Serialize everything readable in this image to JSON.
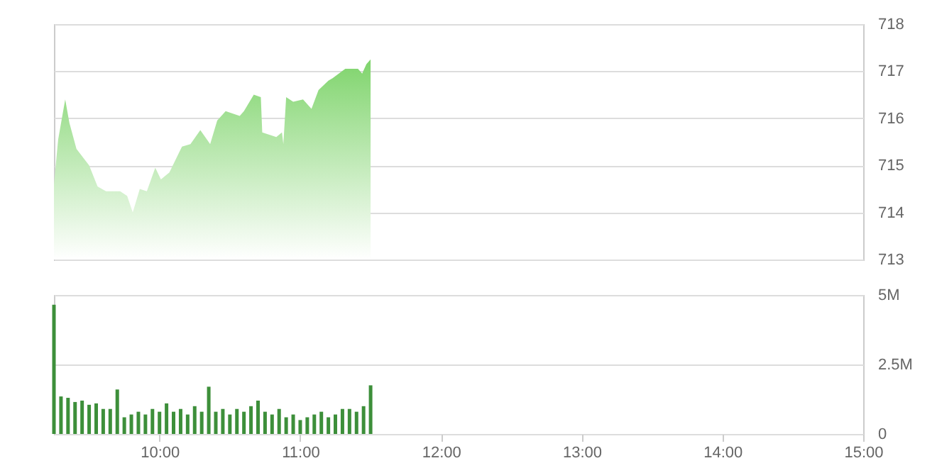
{
  "chart_data": [
    {
      "type": "area",
      "tick_labels": "y",
      "grid": "y",
      "xlim": [
        9.25,
        15
      ],
      "ylim": [
        713,
        718
      ],
      "yticks": [
        713,
        714,
        715,
        716,
        717,
        718
      ],
      "x": [
        9.25,
        9.28,
        9.33,
        9.36,
        9.41,
        9.5,
        9.56,
        9.62,
        9.72,
        9.77,
        9.81,
        9.86,
        9.91,
        9.97,
        10.01,
        10.07,
        10.16,
        10.22,
        10.29,
        10.36,
        10.41,
        10.47,
        10.57,
        10.6,
        10.67,
        10.72,
        10.73,
        10.83,
        10.87,
        10.88,
        10.9,
        10.95,
        11.02,
        11.08,
        11.13,
        11.2,
        11.23,
        11.32,
        11.41,
        11.44,
        11.47,
        11.5
      ],
      "series": [
        {
          "color": "#7fd46c",
          "values": [
            714.6,
            715.55,
            716.4,
            715.9,
            715.35,
            715.0,
            714.55,
            714.45,
            714.45,
            714.35,
            714.0,
            714.5,
            714.45,
            714.95,
            714.7,
            714.85,
            715.4,
            715.45,
            715.75,
            715.45,
            715.95,
            716.15,
            716.05,
            716.15,
            716.5,
            716.45,
            715.7,
            715.6,
            715.7,
            715.45,
            716.45,
            716.35,
            716.4,
            716.2,
            716.6,
            716.8,
            716.85,
            717.05,
            717.05,
            716.95,
            717.15,
            717.25
          ]
        }
      ]
    },
    {
      "type": "bar",
      "grid": "y",
      "xlim": [
        9.25,
        15
      ],
      "ylim": [
        0,
        5000000
      ],
      "xticks": [
        {
          "value": 10,
          "label": "10:00"
        },
        {
          "value": 11,
          "label": "11:00"
        },
        {
          "value": 12,
          "label": "12:00"
        },
        {
          "value": 13,
          "label": "13:00"
        },
        {
          "value": 14,
          "label": "14:00"
        },
        {
          "value": 15,
          "label": "15:00"
        }
      ],
      "yticks": [
        0,
        {
          "value": 2500000,
          "label": "2.5M"
        },
        {
          "value": 5000000,
          "label": "5M"
        }
      ],
      "x": [
        9.25,
        9.3,
        9.35,
        9.4,
        9.45,
        9.5,
        9.55,
        9.6,
        9.65,
        9.7,
        9.75,
        9.8,
        9.85,
        9.9,
        9.95,
        10.0,
        10.05,
        10.1,
        10.15,
        10.2,
        10.25,
        10.3,
        10.35,
        10.4,
        10.45,
        10.5,
        10.55,
        10.6,
        10.65,
        10.7,
        10.75,
        10.8,
        10.85,
        10.9,
        10.95,
        11.0,
        11.05,
        11.1,
        11.15,
        11.2,
        11.25,
        11.3,
        11.35,
        11.4,
        11.45,
        11.5
      ],
      "series": [
        {
          "color": "#3d8f3a",
          "values": [
            4650000,
            1350000,
            1300000,
            1150000,
            1200000,
            1050000,
            1100000,
            900000,
            900000,
            1600000,
            600000,
            700000,
            800000,
            700000,
            900000,
            800000,
            1100000,
            800000,
            900000,
            700000,
            1000000,
            800000,
            1700000,
            800000,
            900000,
            700000,
            900000,
            800000,
            1000000,
            1200000,
            800000,
            700000,
            900000,
            600000,
            700000,
            500000,
            600000,
            700000,
            800000,
            600000,
            700000,
            900000,
            900000,
            800000,
            1000000,
            1750000
          ]
        }
      ]
    }
  ]
}
